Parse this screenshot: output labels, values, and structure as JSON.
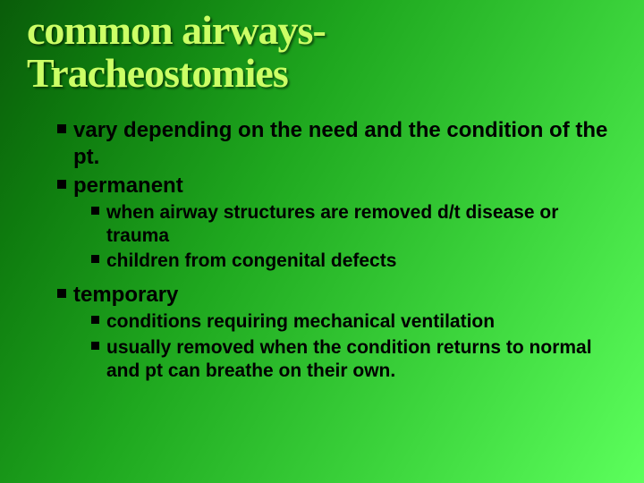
{
  "slide": {
    "title_line1": "common airways-",
    "title_line2": "Tracheostomies",
    "title_color": "#ccff66",
    "title_fontsize": 46,
    "bullets": [
      {
        "level": 1,
        "text": "vary depending on the need and the condition of the pt."
      },
      {
        "level": 1,
        "text": "permanent"
      },
      {
        "level": 2,
        "text": "when airway structures are removed d/t disease or trauma"
      },
      {
        "level": 2,
        "text": "children from  congenital defects"
      },
      {
        "level": 1,
        "text": "temporary",
        "gap_before": true
      },
      {
        "level": 2,
        "text": "conditions requiring mechanical ventilation"
      },
      {
        "level": 2,
        "text": "usually removed when the condition returns to normal and pt can breathe on their own."
      }
    ],
    "body_color": "#000000",
    "body_fontsize_l1": 24,
    "body_fontsize_l2": 21,
    "marker_color": "#000000"
  }
}
